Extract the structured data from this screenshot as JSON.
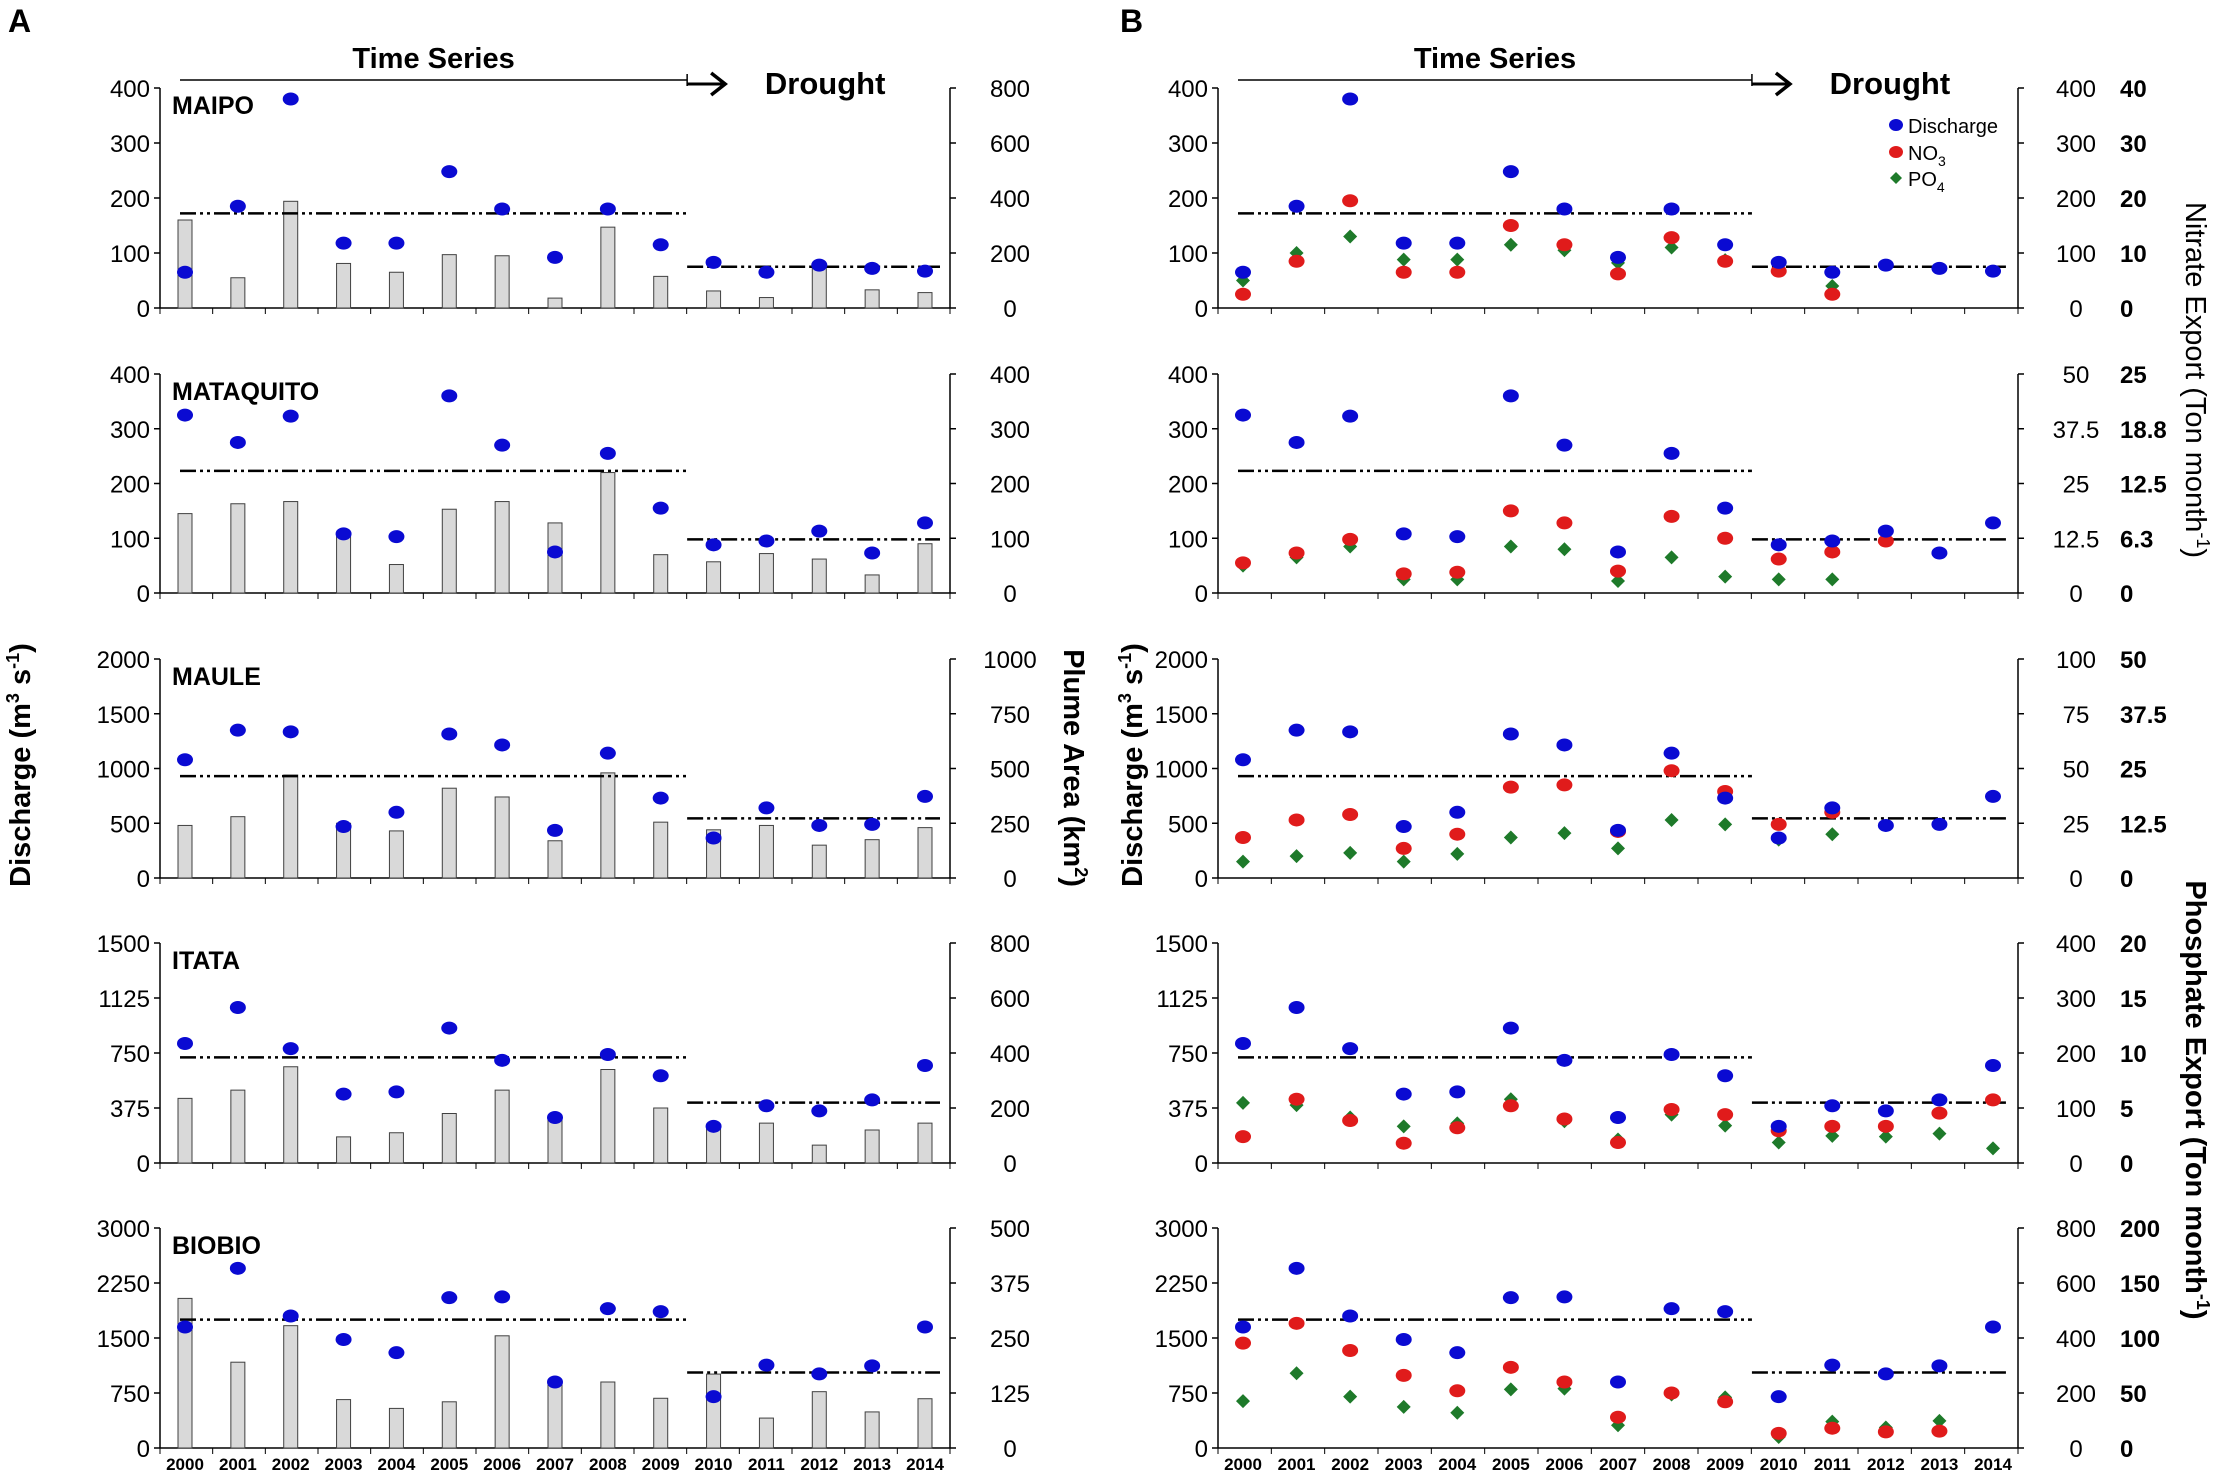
{
  "panels": [
    "A",
    "B"
  ],
  "header": {
    "time_series": "Time Series",
    "drought": "Drought"
  },
  "labels": {
    "discharge_html": "Discharge (m<tspan dy='-11' font-size='18'>3</tspan><tspan dy='11'> s</tspan><tspan dy='-11' font-size='18'>-1</tspan><tspan dy='11'>)</tspan>",
    "plume_html": "Plume Area (km<tspan dy='-11' font-size='18'>2</tspan><tspan dy='11'>)</tspan>",
    "nitrate_html": "Nitrate Export  (Ton month<tspan dy='-11' font-size='18'>-1</tspan><tspan dy='11'>)</tspan>",
    "phosphate_html": "Phosphate Export (Ton month<tspan dy='-11' font-size='18'>-1</tspan><tspan dy='11'>)</tspan>"
  },
  "legend": {
    "discharge": "Discharge",
    "no3_html": "NO<tspan dy='6' font-size='14'>3</tspan>",
    "po4_html": "PO<tspan dy='6' font-size='14'>4</tspan>"
  },
  "colors": {
    "discharge": "#0a0ad2",
    "no3": "#e01b1b",
    "po4": "#1e7a2a",
    "bar": "#d9d9d9"
  },
  "chart_data": {
    "type": "scatter",
    "x": [
      2000,
      2001,
      2002,
      2003,
      2004,
      2005,
      2006,
      2007,
      2008,
      2009,
      2010,
      2011,
      2012,
      2013,
      2014
    ],
    "rivers": [
      {
        "name": "MAIPO",
        "discharge": [
          65,
          185,
          380,
          118,
          118,
          248,
          180,
          92,
          180,
          115,
          83,
          65,
          78,
          72,
          67
        ],
        "discharge_ylim": [
          0,
          400
        ],
        "discharge_ticks": [
          "400",
          "300",
          "200",
          "100",
          "0"
        ],
        "ts_mean": 172,
        "drought_mean": 75,
        "plume": [
          320,
          110,
          388,
          162,
          130,
          194,
          190,
          36,
          294,
          115,
          62,
          38,
          162,
          66,
          56
        ],
        "plume_ylim": [
          0,
          800
        ],
        "plume_ticks": [
          "800",
          "600",
          "400",
          "200",
          "0"
        ],
        "nutrient_ticks_outer": [
          "400",
          "300",
          "200",
          "100",
          "0"
        ],
        "nutrient_ticks_bold": [
          "40",
          "30",
          "20",
          "10",
          "0"
        ],
        "no3": [
          25,
          85,
          195,
          65,
          65,
          150,
          115,
          62,
          128,
          85,
          67,
          25,
          null,
          null,
          null
        ],
        "po4": [
          50,
          100,
          130,
          88,
          88,
          115,
          105,
          82,
          110,
          87,
          78,
          40,
          null,
          null,
          null
        ]
      },
      {
        "name": "MATAQUITO",
        "discharge": [
          325,
          275,
          323,
          108,
          103,
          360,
          270,
          75,
          255,
          155,
          88,
          95,
          113,
          73,
          128
        ],
        "discharge_ylim": [
          0,
          400
        ],
        "discharge_ticks": [
          "400",
          "300",
          "200",
          "100",
          "0"
        ],
        "ts_mean": 223,
        "drought_mean": 98,
        "plume": [
          145,
          163,
          167,
          110,
          52,
          153,
          167,
          128,
          220,
          70,
          57,
          72,
          62,
          33,
          90
        ],
        "plume_ylim": [
          0,
          400
        ],
        "plume_ticks": [
          "400",
          "300",
          "200",
          "100",
          "0"
        ],
        "nutrient_ticks_outer": [
          "50",
          "37.5",
          "25",
          "12.5",
          "0"
        ],
        "nutrient_ticks_bold": [
          "25",
          "18.8",
          "12.5",
          "6.3",
          "0"
        ],
        "no3": [
          55,
          73,
          98,
          35,
          38,
          150,
          128,
          40,
          140,
          100,
          62,
          75,
          95,
          null,
          null
        ],
        "po4": [
          50,
          65,
          85,
          25,
          25,
          85,
          80,
          22,
          65,
          30,
          25,
          25,
          null,
          null,
          null
        ]
      },
      {
        "name": "MAULE",
        "discharge": [
          1080,
          1350,
          1335,
          470,
          600,
          1315,
          1215,
          435,
          1140,
          730,
          365,
          640,
          480,
          490,
          745
        ],
        "discharge_ylim": [
          0,
          2000
        ],
        "discharge_ticks": [
          "2000",
          "1500",
          "1000",
          "500",
          "0"
        ],
        "ts_mean": 930,
        "drought_mean": 545,
        "plume": [
          240,
          280,
          470,
          250,
          215,
          410,
          370,
          170,
          480,
          255,
          220,
          240,
          150,
          175,
          230
        ],
        "plume_ylim": [
          0,
          1000
        ],
        "plume_ticks": [
          "1000",
          "750",
          "500",
          "250",
          "0"
        ],
        "nutrient_ticks_outer": [
          "100",
          "75",
          "50",
          "25",
          "0"
        ],
        "nutrient_ticks_bold": [
          "50",
          "37.5",
          "25",
          "12.5",
          "0"
        ],
        "no3": [
          370,
          530,
          580,
          270,
          400,
          830,
          850,
          425,
          980,
          790,
          490,
          600,
          null,
          null,
          null
        ],
        "po4": [
          150,
          200,
          230,
          150,
          220,
          370,
          410,
          270,
          530,
          490,
          350,
          400,
          null,
          null,
          null
        ]
      },
      {
        "name": "ITATA",
        "discharge": [
          815,
          1060,
          780,
          470,
          485,
          920,
          700,
          310,
          740,
          595,
          250,
          390,
          355,
          430,
          665
        ],
        "discharge_ylim": [
          0,
          1500
        ],
        "discharge_ticks": [
          "1500",
          "1125",
          "750",
          "375",
          "0"
        ],
        "ts_mean": 720,
        "drought_mean": 412,
        "plume": [
          235,
          265,
          350,
          95,
          110,
          180,
          265,
          160,
          340,
          200,
          140,
          145,
          65,
          120,
          145
        ],
        "plume_ylim": [
          0,
          800
        ],
        "plume_ticks": [
          "800",
          "600",
          "400",
          "200",
          "0"
        ],
        "nutrient_ticks_outer": [
          "400",
          "300",
          "200",
          "100",
          "0"
        ],
        "nutrient_ticks_bold": [
          "20",
          "15",
          "10",
          "5",
          "0"
        ],
        "no3": [
          180,
          435,
          290,
          135,
          240,
          390,
          300,
          140,
          365,
          330,
          220,
          250,
          250,
          340,
          430
        ],
        "po4": [
          410,
          395,
          310,
          250,
          270,
          435,
          285,
          160,
          330,
          255,
          140,
          185,
          180,
          200,
          100
        ]
      },
      {
        "name": "BIOBIO",
        "discharge": [
          1650,
          2450,
          1800,
          1480,
          1300,
          2050,
          2060,
          900,
          1900,
          1860,
          700,
          1130,
          1010,
          1120,
          1650
        ],
        "discharge_ylim": [
          0,
          3000
        ],
        "discharge_ticks": [
          "3000",
          "2250",
          "1500",
          "750",
          "0"
        ],
        "ts_mean": 1750,
        "drought_mean": 1030,
        "plume": [
          340,
          195,
          278,
          110,
          90,
          105,
          255,
          150,
          150,
          113,
          168,
          68,
          128,
          82,
          112
        ],
        "plume_ylim": [
          0,
          500
        ],
        "plume_ticks": [
          "500",
          "375",
          "250",
          "125",
          "0"
        ],
        "nutrient_ticks_outer": [
          "800",
          "600",
          "400",
          "200",
          "0"
        ],
        "nutrient_ticks_bold": [
          "200",
          "150",
          "100",
          "50",
          "0"
        ],
        "no3": [
          1430,
          1700,
          1330,
          990,
          780,
          1100,
          900,
          420,
          750,
          630,
          200,
          270,
          220,
          230,
          null
        ],
        "po4": [
          640,
          1020,
          700,
          560,
          480,
          800,
          810,
          310,
          730,
          690,
          150,
          360,
          280,
          370,
          null
        ]
      }
    ]
  }
}
